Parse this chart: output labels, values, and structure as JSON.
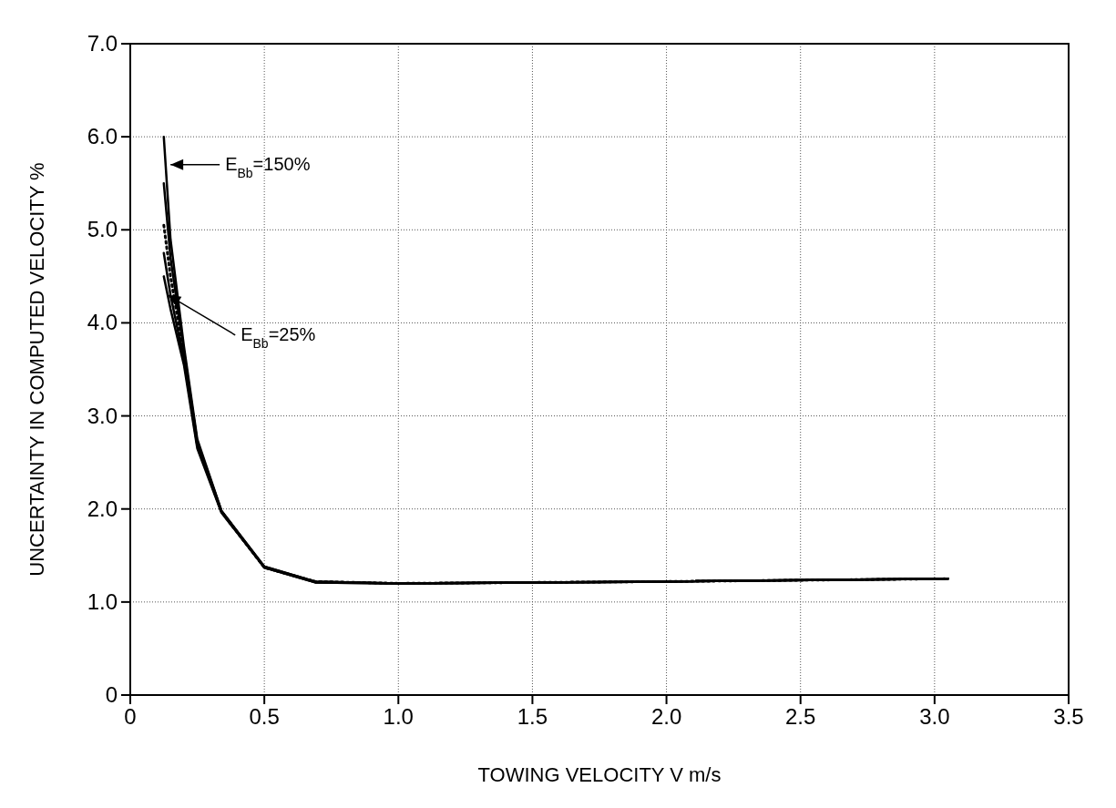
{
  "chart_data": {
    "type": "line",
    "xlabel": "TOWING VELOCITY V m/s",
    "ylabel": "UNCERTAINTY IN COMPUTED VELOCITY %",
    "xlim": [
      0,
      3.5
    ],
    "xticks": [
      {
        "value": 0,
        "label": "0"
      },
      {
        "value": 0.5,
        "label": "0.5"
      },
      {
        "value": 1,
        "label": "1.0"
      },
      {
        "value": 1.5,
        "label": "1.5"
      },
      {
        "value": 2,
        "label": "2.0"
      },
      {
        "value": 2.5,
        "label": "2.5"
      },
      {
        "value": 3,
        "label": "3.0"
      },
      {
        "value": 3.5,
        "label": "3.5"
      }
    ],
    "ylim": [
      0,
      7
    ],
    "yticks": [
      {
        "value": 0,
        "label": "0"
      },
      {
        "value": 1,
        "label": "1.0"
      },
      {
        "value": 2,
        "label": "2.0"
      },
      {
        "value": 3,
        "label": "3.0"
      },
      {
        "value": 4,
        "label": "4.0"
      },
      {
        "value": 5,
        "label": "5.0"
      },
      {
        "value": 6,
        "label": "6.0"
      },
      {
        "value": 7,
        "label": "7.0"
      }
    ],
    "grid": true,
    "marker": "none",
    "line_style": "solid",
    "series": [
      {
        "color": "#000000",
        "x": [
          0.125,
          0.15,
          0.2,
          0.25,
          0.34,
          0.5,
          0.69,
          1.0,
          2.0,
          3.05
        ],
        "values": [
          6.0,
          4.9,
          3.75,
          2.75,
          1.98,
          1.38,
          1.22,
          1.2,
          1.22,
          1.25
        ]
      },
      {
        "color": "#000000",
        "x": [
          0.125,
          0.15,
          0.2,
          0.25,
          0.34,
          0.5,
          0.69,
          1.0,
          2.0,
          3.05
        ],
        "values": [
          5.5,
          4.7,
          3.7,
          2.72,
          1.98,
          1.38,
          1.22,
          1.2,
          1.22,
          1.25
        ]
      },
      {
        "color": "#000000",
        "line_style": "dotted",
        "x": [
          0.125,
          0.15,
          0.2,
          0.25,
          0.34,
          0.5,
          0.69,
          1.0,
          2.0,
          3.05
        ],
        "values": [
          5.05,
          4.5,
          3.65,
          2.7,
          1.97,
          1.37,
          1.22,
          1.2,
          1.22,
          1.25
        ]
      },
      {
        "color": "#000000",
        "x": [
          0.125,
          0.15,
          0.2,
          0.25,
          0.34,
          0.5,
          0.69,
          1.0,
          2.0,
          3.05
        ],
        "values": [
          4.75,
          4.3,
          3.6,
          2.68,
          1.97,
          1.37,
          1.21,
          1.2,
          1.22,
          1.25
        ]
      },
      {
        "color": "#000000",
        "x": [
          0.125,
          0.15,
          0.2,
          0.25,
          0.34,
          0.5,
          0.69,
          1.0,
          2.0,
          3.05
        ],
        "values": [
          4.5,
          4.15,
          3.55,
          2.65,
          1.96,
          1.37,
          1.21,
          1.2,
          1.22,
          1.25
        ]
      }
    ],
    "annotations": [
      {
        "text": "E$_{Bb}$=150%",
        "x": 0.15,
        "y": 5.7
      },
      {
        "text": "E$_{Bb}$=25%",
        "x": 0.14,
        "y": 4.3
      }
    ]
  }
}
